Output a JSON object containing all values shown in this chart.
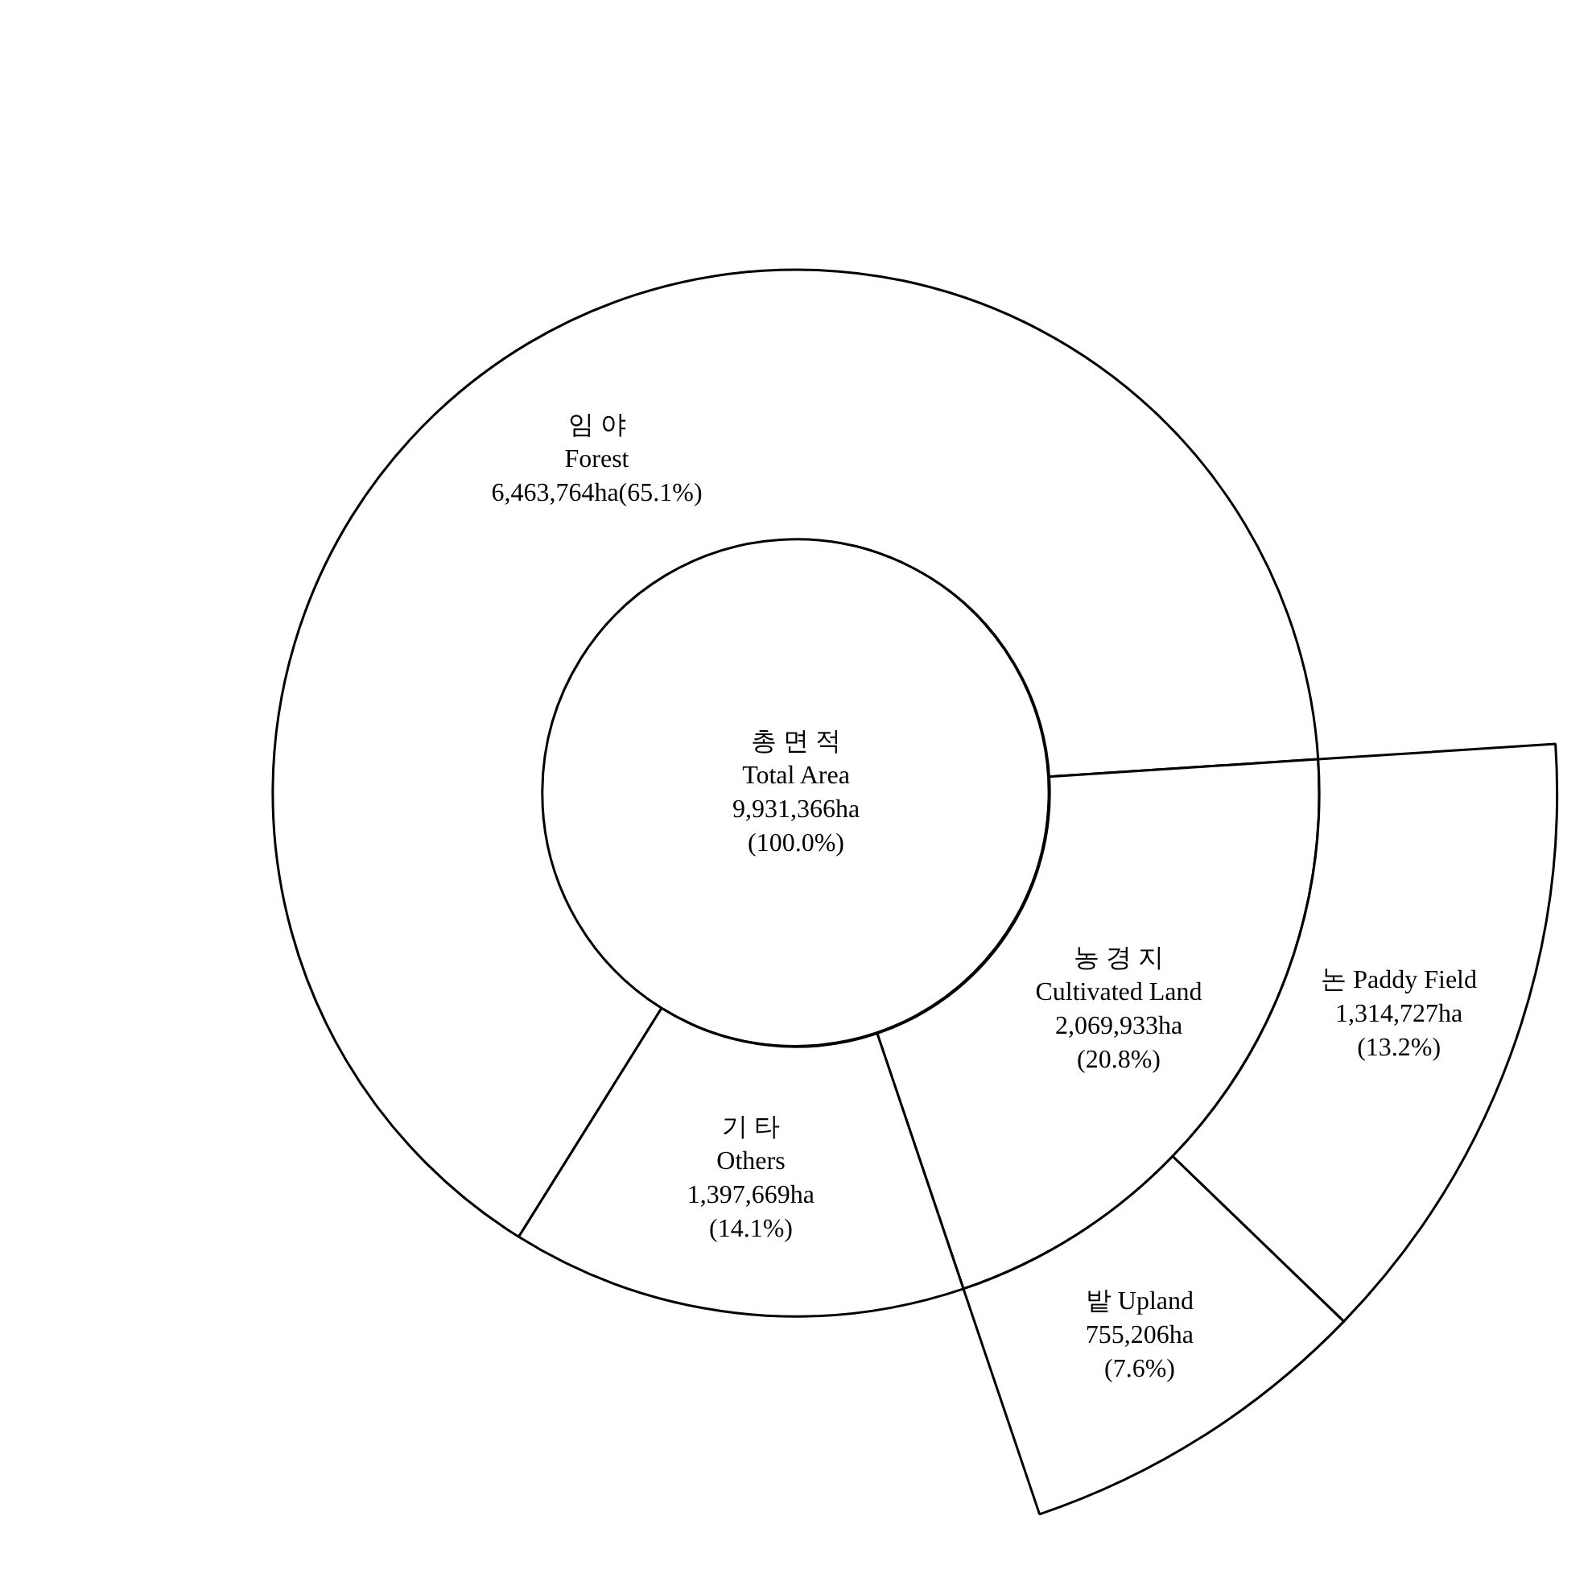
{
  "chart_data": {
    "type": "other",
    "categories": [
      "총 면 적\nTotal Area",
      "임 야\nForest",
      "농 경 지\nCultivated Land",
      "기 타\nOthers",
      "논 Paddy Field",
      "밭 Upland"
    ],
    "values": [
      9931366,
      6463764,
      2069933,
      1397669,
      1314727,
      755206
    ],
    "value_labels": [
      "9,931,366ha\n(100.0%)",
      "6,463,764ha(65.1%)",
      "2,069,933ha\n(20.8%)",
      "1,397,669ha\n(14.1%)",
      "1,314,727ha\n(13.2%)",
      "755,206ha\n(7.6%)"
    ],
    "colors": [
      "#ffffff",
      "#ffffff",
      "#ffffff",
      "#ffffff",
      "#ffffff",
      "#ffffff"
    ]
  }
}
